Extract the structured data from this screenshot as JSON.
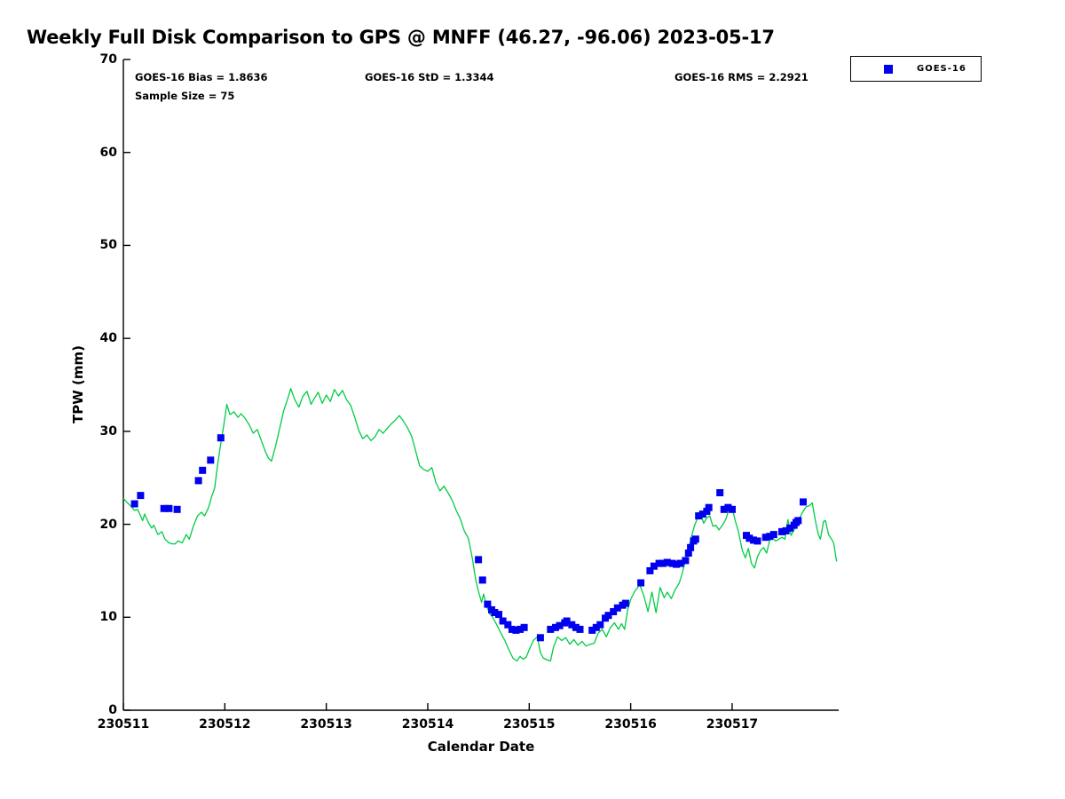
{
  "title": "Weekly Full Disk Comparison to GPS @ MNFF (46.27, -96.06) 2023-05-17",
  "stats": {
    "bias": "GOES-16 Bias = 1.8636",
    "std": "GOES-16 StD = 1.3344",
    "rms": "GOES-16 RMS = 2.2921",
    "sample": "Sample Size = 75"
  },
  "legend": {
    "entries": [
      {
        "label": "GOES-16",
        "marker_color": "#0000ee",
        "marker_shape": "square"
      }
    ]
  },
  "axes": {
    "ylabel": "TPW (mm)",
    "xlabel": "Calendar Date",
    "ylim": [
      0,
      70
    ],
    "xlim": [
      11,
      18.05
    ],
    "yticks": [
      0,
      10,
      20,
      30,
      40,
      50,
      60,
      70
    ],
    "xtick_labels": [
      "230511",
      "230512",
      "230513",
      "230514",
      "230515",
      "230516",
      "230517"
    ],
    "xtick_days": [
      11,
      12,
      13,
      14,
      15,
      16,
      17
    ],
    "grid": false
  },
  "chart_data": {
    "type": "line+scatter",
    "title": "Weekly Full Disk Comparison to GPS @ MNFF (46.27, -96.06) 2023-05-17",
    "xlabel": "Calendar Date",
    "ylabel": "TPW (mm)",
    "ylim": [
      0,
      70
    ],
    "xlim": [
      11,
      18.05
    ],
    "x_unit": "day of 2305 (YYMMDD tick = integer day)",
    "series": [
      {
        "name": "GPS",
        "type": "line",
        "color": "#00cc44",
        "x": [
          11.0,
          11.04,
          11.08,
          11.11,
          11.14,
          11.17,
          11.19,
          11.21,
          11.25,
          11.28,
          11.3,
          11.34,
          11.38,
          11.41,
          11.45,
          11.48,
          11.51,
          11.54,
          11.58,
          11.62,
          11.65,
          11.69,
          11.73,
          11.77,
          11.8,
          11.84,
          11.87,
          11.9,
          11.93,
          11.96,
          11.99,
          12.02,
          12.05,
          12.09,
          12.13,
          12.16,
          12.2,
          12.24,
          12.28,
          12.32,
          12.36,
          12.4,
          12.43,
          12.46,
          12.5,
          12.54,
          12.58,
          12.62,
          12.65,
          12.69,
          12.73,
          12.77,
          12.81,
          12.85,
          12.88,
          12.92,
          12.96,
          13.0,
          13.04,
          13.08,
          13.12,
          13.16,
          13.2,
          13.24,
          13.28,
          13.32,
          13.36,
          13.4,
          13.44,
          13.48,
          13.52,
          13.56,
          13.6,
          13.64,
          13.68,
          13.72,
          13.76,
          13.8,
          13.84,
          13.88,
          13.92,
          13.96,
          14.0,
          14.04,
          14.08,
          14.12,
          14.16,
          14.2,
          14.24,
          14.28,
          14.32,
          14.36,
          14.4,
          14.44,
          14.47,
          14.5,
          14.53,
          14.55,
          14.58,
          14.61,
          14.64,
          14.68,
          14.72,
          14.76,
          14.8,
          14.84,
          14.88,
          14.91,
          14.94,
          14.97,
          15.0,
          15.04,
          15.08,
          15.11,
          15.14,
          15.18,
          15.21,
          15.24,
          15.28,
          15.32,
          15.36,
          15.4,
          15.44,
          15.48,
          15.52,
          15.56,
          15.6,
          15.64,
          15.68,
          15.72,
          15.76,
          15.8,
          15.84,
          15.88,
          15.91,
          15.94,
          15.97,
          16.0,
          16.04,
          16.09,
          16.13,
          16.17,
          16.21,
          16.25,
          16.29,
          16.33,
          16.36,
          16.4,
          16.44,
          16.48,
          16.51,
          16.54,
          16.57,
          16.6,
          16.63,
          16.66,
          16.69,
          16.72,
          16.75,
          16.78,
          16.81,
          16.84,
          16.87,
          16.91,
          16.94,
          16.97,
          17.0,
          17.03,
          17.06,
          17.1,
          17.13,
          17.16,
          17.19,
          17.22,
          17.25,
          17.28,
          17.31,
          17.34,
          17.37,
          17.4,
          17.43,
          17.46,
          17.49,
          17.52,
          17.55,
          17.58,
          17.61,
          17.64,
          17.67,
          17.7,
          17.73,
          17.76,
          17.79,
          17.82,
          17.85,
          17.87,
          17.9,
          17.92,
          17.95,
          17.98,
          18.0,
          18.02,
          18.03
        ],
        "y": [
          22.8,
          22.3,
          21.9,
          21.5,
          21.6,
          20.9,
          20.4,
          21.1,
          20.1,
          19.6,
          19.9,
          18.9,
          19.2,
          18.4,
          18.0,
          17.9,
          17.9,
          18.2,
          18.0,
          18.9,
          18.4,
          19.8,
          20.9,
          21.3,
          20.9,
          21.8,
          23.0,
          23.9,
          26.5,
          28.7,
          30.7,
          32.9,
          31.8,
          32.1,
          31.5,
          31.9,
          31.4,
          30.7,
          29.8,
          30.2,
          29.0,
          27.8,
          27.1,
          26.8,
          28.4,
          30.3,
          32.2,
          33.5,
          34.6,
          33.4,
          32.6,
          33.8,
          34.3,
          32.9,
          33.5,
          34.2,
          33.0,
          33.9,
          33.2,
          34.5,
          33.8,
          34.4,
          33.4,
          32.8,
          31.5,
          30.1,
          29.2,
          29.6,
          29.0,
          29.4,
          30.2,
          29.8,
          30.3,
          30.8,
          31.2,
          31.7,
          31.1,
          30.4,
          29.5,
          27.9,
          26.3,
          25.9,
          25.7,
          26.1,
          24.5,
          23.6,
          24.1,
          23.4,
          22.6,
          21.5,
          20.6,
          19.3,
          18.5,
          16.3,
          14.2,
          12.8,
          11.6,
          12.5,
          11.2,
          10.4,
          10.0,
          9.2,
          8.3,
          7.5,
          6.5,
          5.6,
          5.3,
          5.8,
          5.5,
          5.7,
          6.5,
          7.5,
          7.9,
          6.2,
          5.6,
          5.4,
          5.3,
          6.8,
          7.9,
          7.5,
          7.8,
          7.1,
          7.6,
          7.0,
          7.4,
          6.9,
          7.1,
          7.2,
          8.3,
          8.7,
          7.9,
          8.9,
          9.4,
          8.7,
          9.3,
          8.7,
          10.8,
          11.9,
          12.8,
          13.5,
          12.3,
          10.6,
          12.7,
          10.5,
          13.2,
          12.1,
          12.7,
          12.0,
          13.0,
          13.7,
          14.8,
          16.1,
          17.3,
          18.7,
          19.9,
          20.7,
          21.1,
          20.1,
          20.7,
          20.9,
          19.8,
          19.9,
          19.4,
          20.0,
          20.6,
          21.7,
          21.8,
          20.4,
          19.3,
          17.2,
          16.4,
          17.4,
          15.8,
          15.3,
          16.5,
          17.2,
          17.5,
          16.9,
          18.3,
          18.5,
          18.2,
          18.4,
          18.6,
          18.4,
          20.5,
          18.8,
          19.4,
          19.9,
          20.8,
          21.4,
          21.9,
          22.0,
          22.3,
          20.4,
          18.9,
          18.4,
          20.3,
          20.4,
          18.9,
          18.4,
          18.0,
          16.6,
          16.0
        ]
      },
      {
        "name": "GOES-16",
        "type": "scatter",
        "marker": "square",
        "color": "#0000ee",
        "x": [
          11.11,
          11.17,
          11.4,
          11.45,
          11.53,
          11.74,
          11.78,
          11.86,
          11.96,
          14.5,
          14.54,
          14.59,
          14.63,
          14.66,
          14.7,
          14.74,
          14.79,
          14.83,
          14.87,
          14.91,
          14.95,
          15.11,
          15.21,
          15.26,
          15.3,
          15.35,
          15.37,
          15.42,
          15.46,
          15.5,
          15.62,
          15.66,
          15.7,
          15.75,
          15.78,
          15.83,
          15.87,
          15.92,
          15.95,
          16.1,
          16.19,
          16.23,
          16.28,
          16.32,
          16.36,
          16.41,
          16.45,
          16.49,
          16.54,
          16.57,
          16.59,
          16.62,
          16.64,
          16.67,
          16.71,
          16.75,
          16.77,
          16.88,
          16.92,
          16.96,
          17.0,
          17.14,
          17.17,
          17.21,
          17.25,
          17.33,
          17.37,
          17.41,
          17.49,
          17.53,
          17.57,
          17.61,
          17.63,
          17.65,
          17.7
        ],
        "y": [
          22.2,
          23.1,
          21.7,
          21.7,
          21.6,
          24.7,
          25.8,
          26.9,
          29.3,
          16.2,
          14.0,
          11.4,
          10.8,
          10.5,
          10.3,
          9.6,
          9.2,
          8.7,
          8.6,
          8.7,
          8.9,
          7.8,
          8.7,
          8.9,
          9.1,
          9.4,
          9.6,
          9.2,
          8.9,
          8.7,
          8.6,
          8.9,
          9.2,
          9.9,
          10.2,
          10.6,
          11.0,
          11.3,
          11.5,
          13.7,
          15.0,
          15.5,
          15.8,
          15.8,
          15.9,
          15.8,
          15.7,
          15.8,
          16.1,
          16.9,
          17.5,
          18.2,
          18.4,
          20.9,
          21.1,
          21.4,
          21.8,
          23.4,
          21.6,
          21.8,
          21.6,
          18.8,
          18.5,
          18.3,
          18.2,
          18.6,
          18.7,
          18.9,
          19.2,
          19.3,
          19.6,
          19.9,
          20.2,
          20.4,
          22.4
        ]
      }
    ],
    "legend_entries": [
      "GOES-16"
    ],
    "annotations": [
      "GOES-16 Bias = 1.8636",
      "GOES-16 StD = 1.3344",
      "GOES-16 RMS = 2.2921",
      "Sample Size = 75"
    ]
  }
}
